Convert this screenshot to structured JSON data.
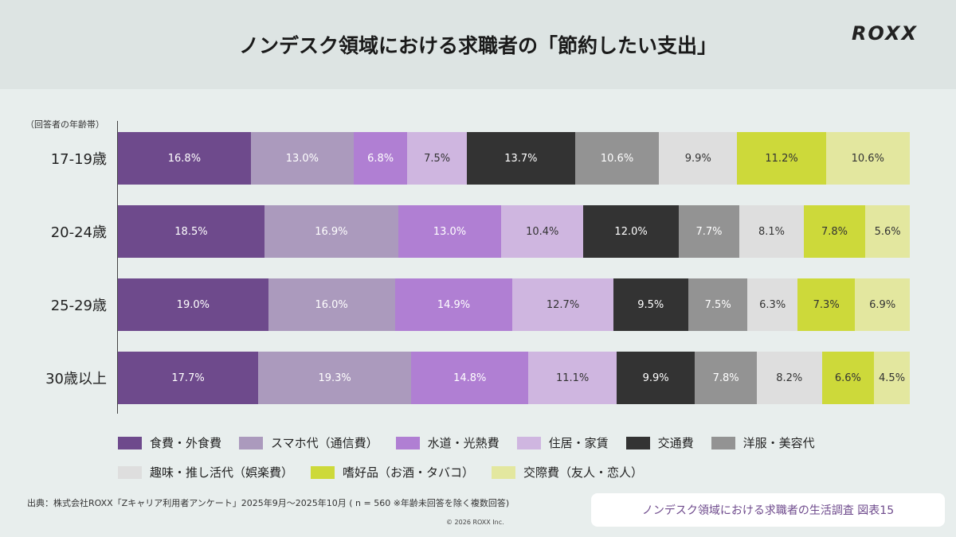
{
  "header": {
    "title": "ノンデスク領域における求職者の「節約したい支出」",
    "logo": "ROXX"
  },
  "chart_data": {
    "type": "bar",
    "orientation": "horizontal",
    "stacked": true,
    "ylabel": "（回答者の年齢帯）",
    "categories": [
      "17-19歳",
      "20-24歳",
      "25-29歳",
      "30歳以上"
    ],
    "series": [
      {
        "name": "食費・外食費",
        "color": "#6e4a8c",
        "text": "#ffffff",
        "values": [
          16.8,
          18.5,
          19.0,
          17.7
        ]
      },
      {
        "name": "スマホ代（通信費）",
        "color": "#ab9abd",
        "text": "#ffffff",
        "values": [
          13.0,
          16.9,
          16.0,
          19.3
        ]
      },
      {
        "name": "水道・光熱費",
        "color": "#b07fd3",
        "text": "#ffffff",
        "values": [
          6.8,
          13.0,
          14.9,
          14.8
        ]
      },
      {
        "name": "住居・家賃",
        "color": "#cfb6e0",
        "text": "#333333",
        "values": [
          7.5,
          10.4,
          12.7,
          11.1
        ]
      },
      {
        "name": "交通費",
        "color": "#333333",
        "text": "#ffffff",
        "values": [
          13.7,
          12.0,
          9.5,
          9.9
        ]
      },
      {
        "name": "洋服・美容代",
        "color": "#939393",
        "text": "#ffffff",
        "values": [
          10.6,
          7.7,
          7.5,
          7.8
        ]
      },
      {
        "name": "趣味・推し活代（娯楽費）",
        "color": "#dedede",
        "text": "#333333",
        "values": [
          9.9,
          8.1,
          6.3,
          8.2
        ]
      },
      {
        "name": "嗜好品（お酒・タバコ）",
        "color": "#cdd93a",
        "text": "#333333",
        "values": [
          11.2,
          7.8,
          7.3,
          6.6
        ]
      },
      {
        "name": "交際費（友人・恋人）",
        "color": "#e3e79f",
        "text": "#333333",
        "values": [
          10.6,
          5.6,
          6.9,
          4.5
        ]
      }
    ],
    "unit": "%",
    "legend": "bottom"
  },
  "footer": {
    "source": "出典：株式会社ROXX「Zキャリア利用者アンケート」2025年9月〜2025年10月 ( n = 560 ※年齢未回答を除く複数回答)",
    "copyright": "© 2026 ROXX Inc.",
    "badge": "ノンデスク領域における求職者の生活調査 図表15"
  }
}
